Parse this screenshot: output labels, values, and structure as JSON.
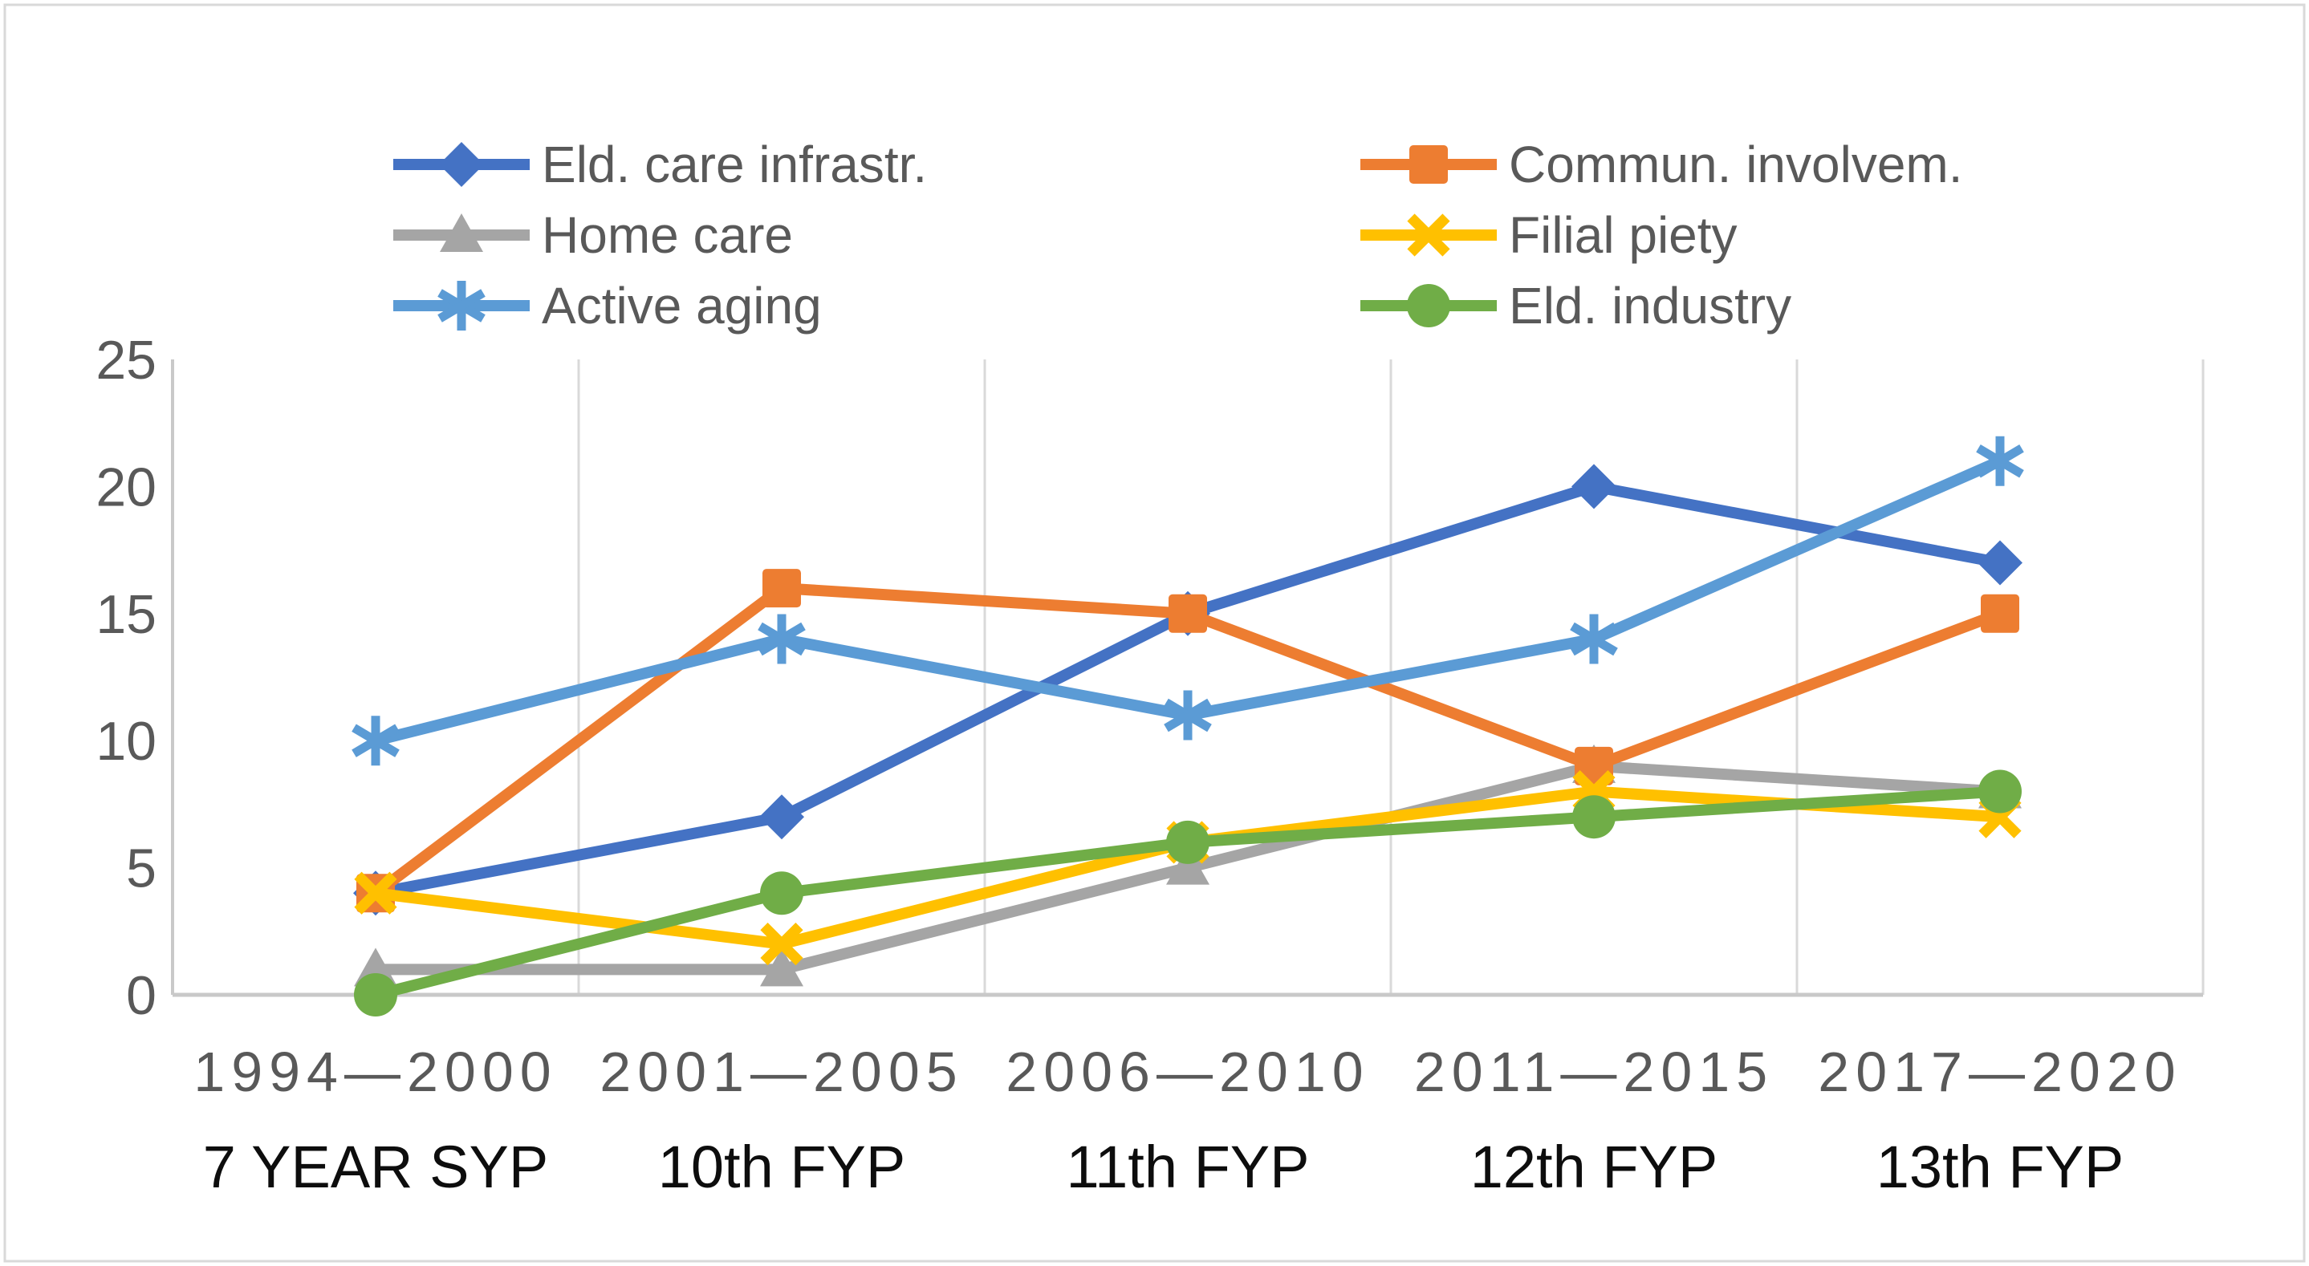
{
  "figure": {
    "background": "#FFFFFF",
    "border_color": "#D9D9D9"
  },
  "chart_data": {
    "type": "line",
    "title": "",
    "xlabel": "",
    "ylabel": "",
    "categories": [
      "1994—2000",
      "2001—2005",
      "2006—2010",
      "2011—2015",
      "2017—2020"
    ],
    "category_sublabels": [
      "7 YEAR SYP",
      "10th FYP",
      "11th FYP",
      "12th FYP",
      "13th FYP"
    ],
    "series": [
      {
        "name": "Eld. care infrastr.",
        "color": "#4472C4",
        "marker": "diamond",
        "values": [
          4,
          7,
          15,
          20,
          17
        ]
      },
      {
        "name": "Commun. involvem.",
        "color": "#ED7D31",
        "marker": "square",
        "values": [
          4,
          16,
          15,
          9,
          15
        ]
      },
      {
        "name": "Home care",
        "color": "#A5A5A5",
        "marker": "triangle",
        "values": [
          1,
          1,
          5,
          9,
          8
        ]
      },
      {
        "name": "Filial piety",
        "color": "#FFC000",
        "marker": "x",
        "values": [
          4,
          2,
          6,
          8,
          7
        ]
      },
      {
        "name": "Active aging",
        "color": "#5B9BD5",
        "marker": "asterisk",
        "values": [
          10,
          14,
          11,
          14,
          21
        ]
      },
      {
        "name": "Eld. industry",
        "color": "#70AD47",
        "marker": "circle",
        "values": [
          0,
          4,
          6,
          7,
          8
        ]
      }
    ],
    "draw_order": [
      0,
      2,
      1,
      3,
      4,
      5
    ],
    "y_ticks": [
      0,
      5,
      10,
      15,
      20,
      25
    ],
    "ylim": [
      0,
      25
    ],
    "grid": "vertical-only",
    "legend_position": "top",
    "legend_columns": 2,
    "gridline_color": "#D9D9D9",
    "axis_line_color": "#C9C9C9",
    "tick_label_color": "#595959",
    "legend_label_color": "#595959",
    "sublabel_color": "#0D0D0D"
  }
}
